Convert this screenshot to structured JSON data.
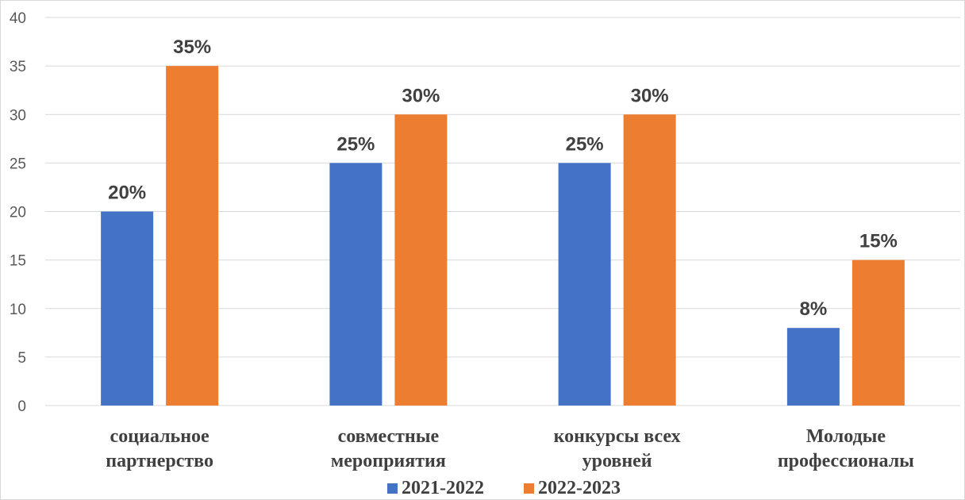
{
  "chart_data": {
    "type": "bar",
    "categories": [
      [
        "социальное",
        "партнерство"
      ],
      [
        "совместные",
        "мероприятия"
      ],
      [
        "конкурсы всех",
        "уровней"
      ],
      [
        "Молодые",
        "профессионалы"
      ]
    ],
    "series": [
      {
        "name": "2021-2022",
        "values": [
          20,
          25,
          25,
          8
        ],
        "labels": [
          "20%",
          "25%",
          "25%",
          "8%"
        ],
        "color": "#4472c4"
      },
      {
        "name": "2022-2023",
        "values": [
          35,
          30,
          30,
          15
        ],
        "labels": [
          "35%",
          "30%",
          "30%",
          "15%"
        ],
        "color": "#ed7d31"
      }
    ],
    "ylim": [
      0,
      40
    ],
    "yticks": [
      "0",
      "5",
      "10",
      "15",
      "20",
      "25",
      "30",
      "35",
      "40"
    ],
    "grid": true,
    "legend": "bottom",
    "colors": {
      "gridline": "#d9d9d9",
      "text": "#404040",
      "tick": "#595959"
    }
  }
}
